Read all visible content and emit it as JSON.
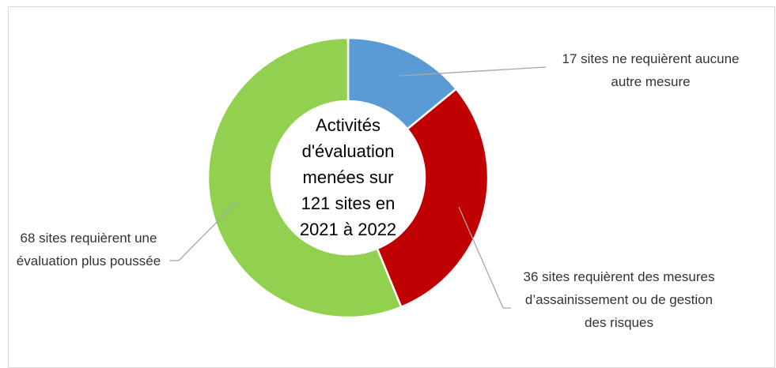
{
  "chart_data": {
    "type": "donut",
    "title": "Activités d'évaluation menées sur 121 sites en 2021 à 2022",
    "categories": [
      "17 sites ne requièrent aucune autre mesure",
      "36 sites requièrent des mesures d’assainissement ou de gestion des risques",
      "68 sites requièrent une évaluation plus poussée"
    ],
    "series": [
      {
        "values": [
          17,
          36,
          68
        ],
        "colors": [
          "#5b9bd5",
          "#c00000",
          "#92d050"
        ]
      }
    ]
  }
}
